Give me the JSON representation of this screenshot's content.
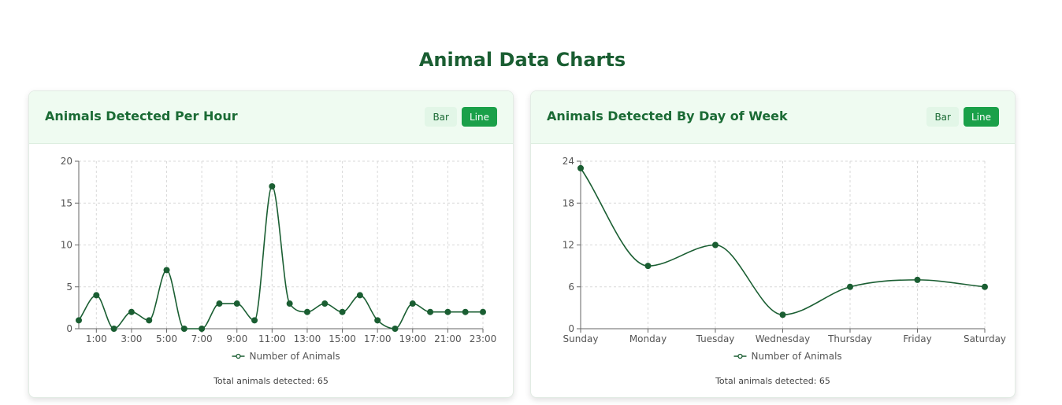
{
  "page": {
    "title": "Animal Data Charts"
  },
  "colors": {
    "accent": "#1aa049",
    "line": "#1a5e32",
    "title": "#1a5e32",
    "header_bg": "#effbf1"
  },
  "charts": [
    {
      "title": "Animals Detected Per Hour",
      "buttons": {
        "bar": "Bar",
        "line": "Line",
        "active": "line"
      },
      "footer": "Total animals detected: 65"
    },
    {
      "title": "Animals Detected By Day of Week",
      "buttons": {
        "bar": "Bar",
        "line": "Line",
        "active": "line"
      },
      "footer": "Total animals detected: 65"
    }
  ],
  "chart_data": [
    {
      "type": "line",
      "x": [
        "0:00",
        "1:00",
        "2:00",
        "3:00",
        "4:00",
        "5:00",
        "6:00",
        "7:00",
        "8:00",
        "9:00",
        "10:00",
        "11:00",
        "12:00",
        "13:00",
        "14:00",
        "15:00",
        "16:00",
        "17:00",
        "18:00",
        "19:00",
        "20:00",
        "21:00",
        "22:00",
        "23:00"
      ],
      "x_tick_labels": [
        "1:00",
        "3:00",
        "5:00",
        "7:00",
        "9:00",
        "11:00",
        "13:00",
        "15:00",
        "17:00",
        "19:00",
        "21:00",
        "23:00"
      ],
      "series": [
        {
          "name": "Number of Animals",
          "values": [
            1,
            4,
            0,
            2,
            1,
            7,
            0,
            0,
            3,
            3,
            1,
            17,
            3,
            2,
            3,
            2,
            4,
            1,
            0,
            3,
            2,
            2,
            2,
            2
          ]
        }
      ],
      "ylim": [
        0,
        20
      ],
      "yticks": [
        0,
        5,
        10,
        15,
        20
      ],
      "grid": true,
      "legend": "bottom"
    },
    {
      "type": "line",
      "x": [
        "Sunday",
        "Monday",
        "Tuesday",
        "Wednesday",
        "Thursday",
        "Friday",
        "Saturday"
      ],
      "x_tick_labels": [
        "Sunday",
        "Monday",
        "Tuesday",
        "Wednesday",
        "Thursday",
        "Friday",
        "Saturday"
      ],
      "series": [
        {
          "name": "Number of Animals",
          "values": [
            23,
            9,
            12,
            2,
            6,
            7,
            6
          ]
        }
      ],
      "ylim": [
        0,
        24
      ],
      "yticks": [
        0,
        6,
        12,
        18,
        24
      ],
      "grid": true,
      "legend": "bottom"
    }
  ]
}
